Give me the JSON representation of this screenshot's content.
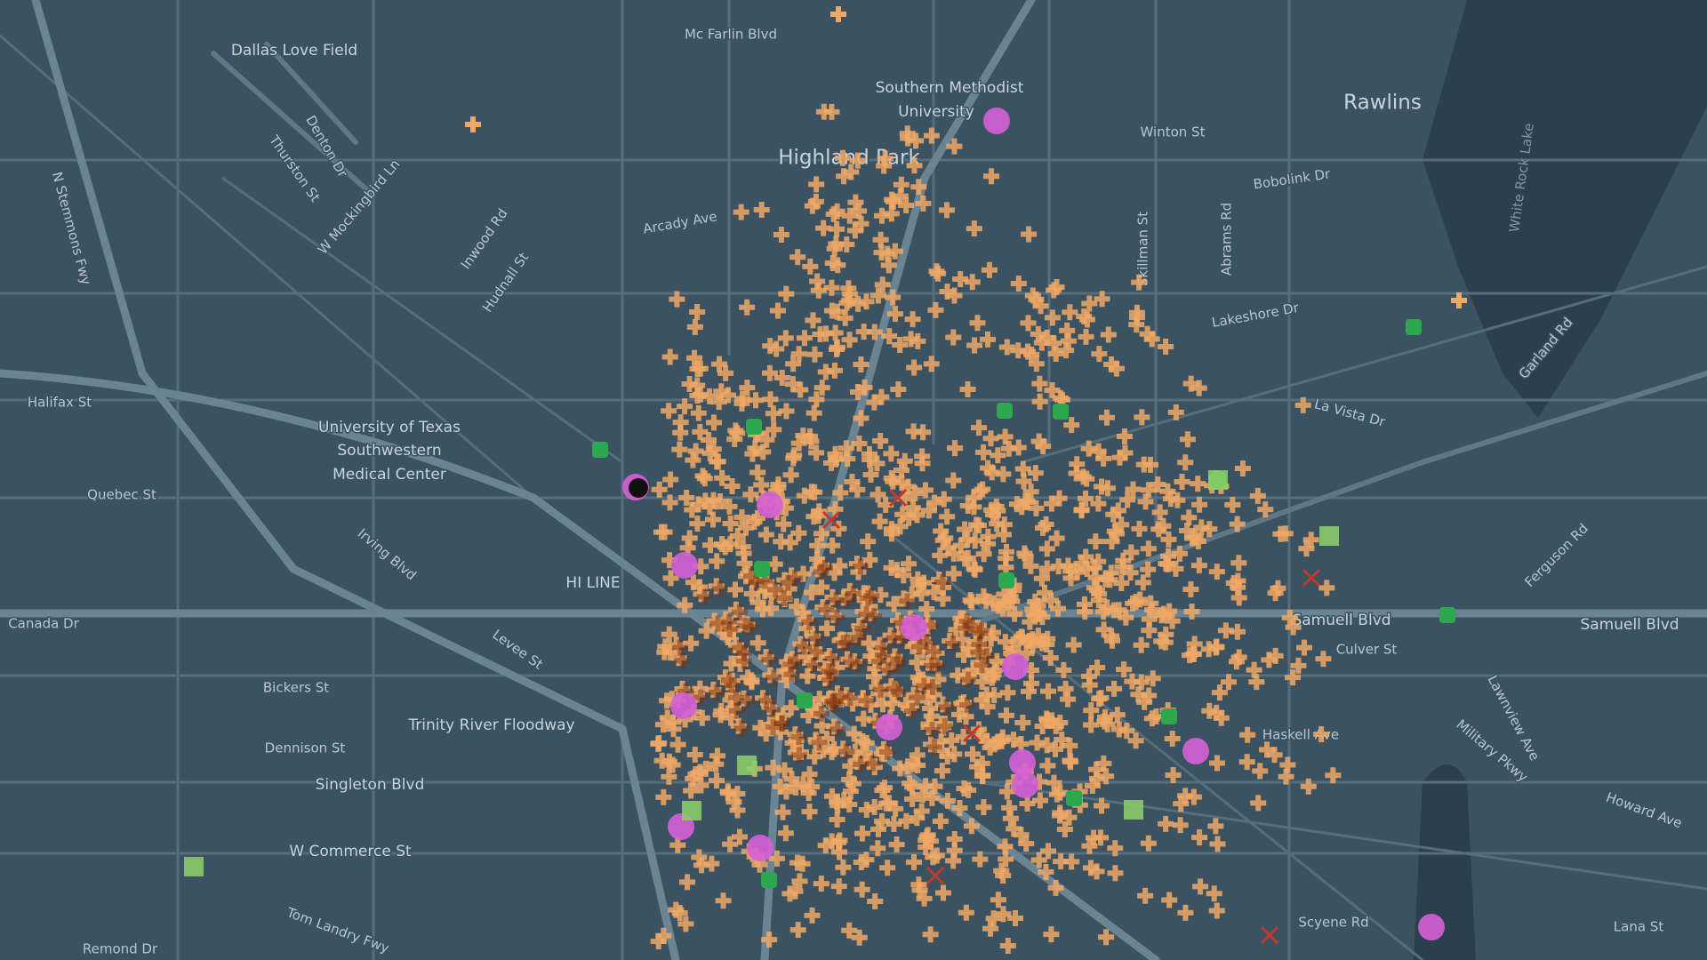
{
  "labels": [
    "Dallas Love Field",
    "Mc Farlin Blvd",
    "Southern Methodist",
    "University",
    "Highland Park",
    "Rawlins",
    "White Rock Lake",
    "Winton St",
    "Bobolink Dr",
    "Arcady Ave",
    "Denton Dr",
    "Thurston St",
    "N Stemmons Fwy",
    "W Mockingbird Ln",
    "Inwood Rd",
    "Hudnall St",
    "Halifax St",
    "Quebec St",
    "University of Texas",
    "Southwestern",
    "Medical Center",
    "Irving Blvd",
    "HI LINE",
    "Canada Dr",
    "Levee St",
    "Bickers St",
    "Trinity River Floodway",
    "Dennison St",
    "Singleton Blvd",
    "W Commerce St",
    "Tom Landry Fwy",
    "Remond Dr",
    "Lakeshore Dr",
    "La Vista Dr",
    "Samuell Blvd",
    "Samuell Blvd",
    "Culver St",
    "Haskell Ave",
    "Military Pkwy",
    "Garland Rd",
    "Ferguson Rd",
    "Lawnview Ave",
    "Howard Ave",
    "Lana St",
    "Scyene Rd",
    "Abrams Rd",
    "Skillman St"
  ]
}
